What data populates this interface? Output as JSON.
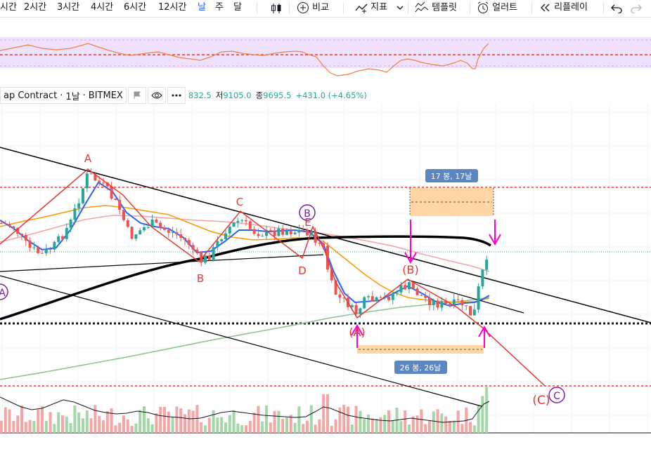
{
  "toolbar": {
    "intervals": [
      "시간",
      "2시간",
      "3시간",
      "4시간",
      "6시간",
      "12시간",
      "날",
      "주",
      "달"
    ],
    "active_interval": "날",
    "compare_label": "비교",
    "indicators_label": "지표",
    "templates_label": "템플릿",
    "alerts_label": "얼러트",
    "replay_label": "리플레이"
  },
  "symbol": {
    "name": "ap Contract",
    "interval": "1날",
    "exchange": "BITMEX"
  },
  "ohlc": {
    "high_value": "832.5",
    "low_label": "저",
    "low_value": "9105.0",
    "close_label": "종",
    "close_value": "9695.5",
    "change": "+431.0 (+4.65%)"
  },
  "annotations": {
    "wave_a_top": "A",
    "wave_b_1": "B",
    "wave_c_1": "C",
    "wave_d": "D",
    "wave_e": "E",
    "wave_b_circle": "B",
    "wave_a_circle": "A",
    "wave_b_paren": "(B)",
    "wave_a_paren": "(A)",
    "wave_c_paren": "(C)",
    "wave_c_circle": "C",
    "range_top": "17 봉, 17날",
    "range_bottom": "26 봉, 26날"
  },
  "colors": {
    "up": "#26a69a",
    "down": "#ef5350",
    "ma_blue": "#2962ff",
    "ma_orange": "#ff9800",
    "ma_pink": "#f7a1a1",
    "ma_green": "#8bc28b",
    "wave_red": "#e53935",
    "magenta": "#ff00cc",
    "rsi_line": "#f08040",
    "rsi_band": "#efe1fb",
    "range_box": "#ffcf94",
    "label_box": "#5b86c1"
  }
}
